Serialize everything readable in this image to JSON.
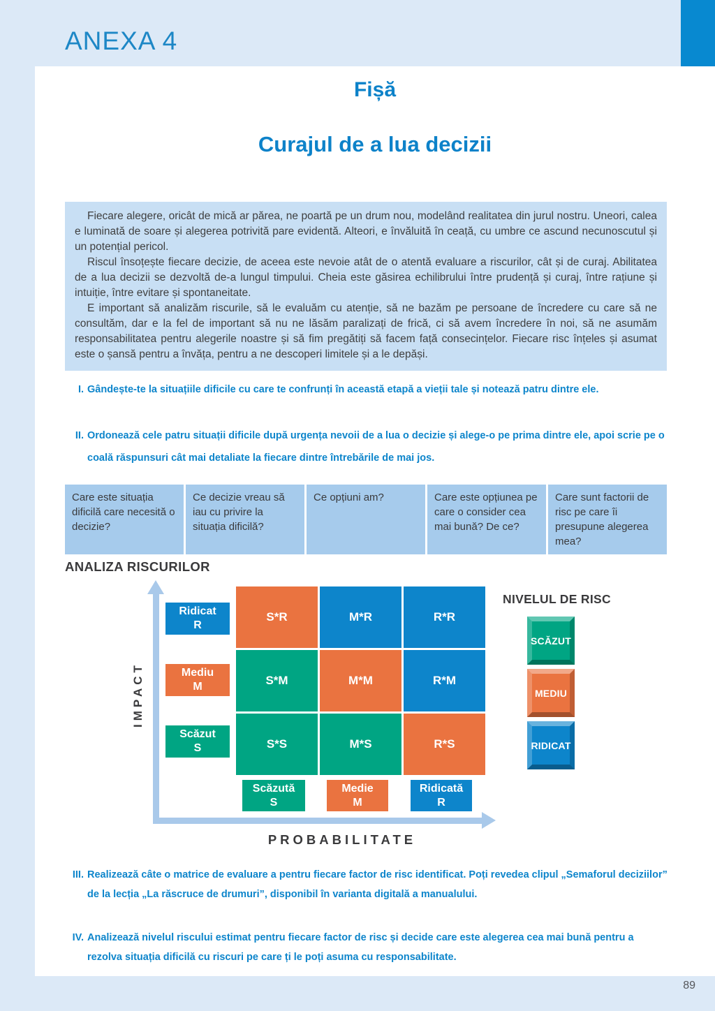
{
  "header": {
    "annex_label": "ANEXA 4"
  },
  "titles": {
    "sheet_label": "Fișă",
    "main_title": "Curajul de a lua decizii"
  },
  "intro": {
    "paragraphs": [
      "Fiecare alegere, oricât de mică ar părea, ne poartă pe un drum nou, modelând realitatea din jurul nostru. Uneori, calea e luminată de soare și alegerea potrivită pare evidentă. Alteori, e învăluită în ceață, cu umbre ce ascund necunoscutul și un potențial pericol.",
      "Riscul însoțește fiecare decizie, de aceea este nevoie atât de o atentă evaluare a riscurilor, cât și de curaj. Abilitatea de a lua decizii se dezvoltă de-a lungul timpului. Cheia este găsirea echilibrului între prudență și curaj, între rațiune și intuiție, între evitare și spontaneitate.",
      "E important să analizăm riscurile, să le evaluăm cu atenție, să ne bazăm pe persoane de încredere cu care să ne consultăm, dar e la fel de important să nu ne lăsăm paralizați de frică, ci să avem încredere în noi, să ne asumăm responsabilitatea pentru alegerile noastre și să fim pregătiți să facem față consecințelor. Fiecare risc înțeles și asumat este o șansă pentru a învăța, pentru a ne descoperi limitele și a le depăși."
    ]
  },
  "tasks": [
    {
      "numeral": "I.",
      "text": "Gândește-te la situațiile dificile cu care te confrunți în această etapă a vieții tale și notează patru dintre ele."
    },
    {
      "numeral": "II.",
      "text": "Ordonează cele patru situații dificile după urgența nevoii de a lua o decizie și alege-o pe prima dintre ele, apoi scrie pe o coală răspunsuri cât mai detaliate la fiecare dintre întrebările de mai jos."
    },
    {
      "numeral": "III.",
      "text": "Realizează câte o matrice de evaluare a pentru fiecare factor de risc identificat. Poți revedea clipul „Semaforul deciziilor” de la lecția „La răscruce de drumuri”, disponibil în varianta digitală a manualului."
    },
    {
      "numeral": "IV.",
      "text": "Analizează nivelul riscului estimat pentru fiecare factor de risc și decide care este alegerea cea mai bună pentru a rezolva situația dificilă cu riscuri pe care ți le poți asuma cu responsabilitate."
    }
  ],
  "questions": [
    "Care este situația dificilă care necesită o decizie?",
    "Ce decizie vreau să iau cu privire la situația dificilă?",
    "Ce opțiuni am?",
    "Care este opțiunea pe care o consider cea mai bună? De ce?",
    "Care sunt factorii de risc pe care îi presupune alegerea mea?"
  ],
  "matrix": {
    "section_title": "ANALIZA RISCURILOR",
    "y_axis_label": "IMPACT",
    "x_axis_label": "PROBABILITATE",
    "impact_levels": [
      {
        "name": "Ridicat",
        "letter": "R",
        "color": "#0d85cb"
      },
      {
        "name": "Mediu",
        "letter": "M",
        "color": "#ea7340"
      },
      {
        "name": "Scăzut",
        "letter": "S",
        "color": "#00a583"
      }
    ],
    "probability_levels": [
      {
        "name": "Scăzută",
        "letter": "S",
        "color": "#00a583"
      },
      {
        "name": "Medie",
        "letter": "M",
        "color": "#ea7340"
      },
      {
        "name": "Ridicată",
        "letter": "R",
        "color": "#0d85cb"
      }
    ],
    "cells": [
      [
        {
          "label": "S*R",
          "color": "#ea7340"
        },
        {
          "label": "M*R",
          "color": "#0d85cb"
        },
        {
          "label": "R*R",
          "color": "#0d85cb"
        }
      ],
      [
        {
          "label": "S*M",
          "color": "#00a583"
        },
        {
          "label": "M*M",
          "color": "#ea7340"
        },
        {
          "label": "R*M",
          "color": "#0d85cb"
        }
      ],
      [
        {
          "label": "S*S",
          "color": "#00a583"
        },
        {
          "label": "M*S",
          "color": "#00a583"
        },
        {
          "label": "R*S",
          "color": "#ea7340"
        }
      ]
    ]
  },
  "legend": {
    "title": "NIVELUL DE RISC",
    "items": [
      {
        "label": "SCĂZUT",
        "color": "#00a583"
      },
      {
        "label": "MEDIU",
        "color": "#ea7340"
      },
      {
        "label": "RIDICAT",
        "color": "#0d85cb"
      }
    ]
  },
  "footer": {
    "page_number": "89"
  },
  "colors": {
    "accent_blue": "#0d85cb",
    "orange": "#ea7340",
    "green": "#00a583",
    "page_background": "#dce9f7",
    "panel_background": "#ffffff",
    "intro_box_background": "#c8dff4",
    "table_cell_background": "#a6cbec",
    "axis_arrow": "#a9c9ea",
    "dark_text": "#3a3a3c",
    "corner_square": "#0889d0"
  }
}
